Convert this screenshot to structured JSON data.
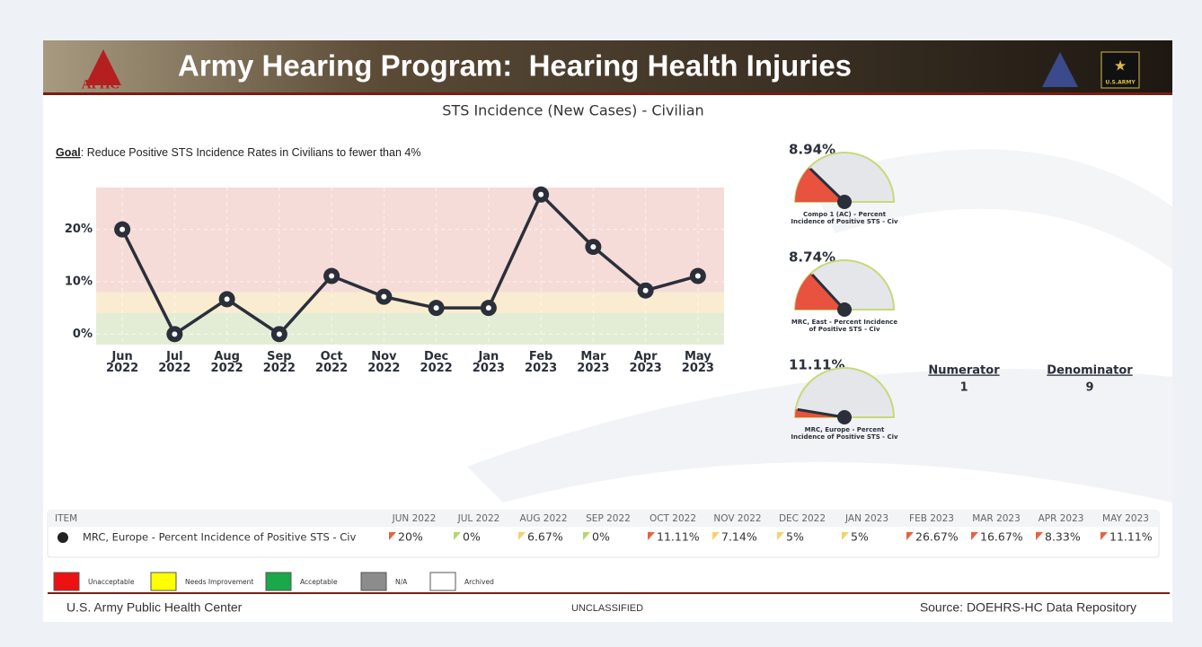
{
  "header": {
    "title": "Army Hearing Program:  Hearing Health Injuries",
    "logo": "APHC",
    "army_badge": "U.S.ARMY"
  },
  "chart_data": {
    "type": "line",
    "title": "STS Incidence (New Cases) - Civilian",
    "goal_label": "Goal",
    "goal_text": ": Reduce Positive STS Incidence Rates in Civilians to fewer than 4%",
    "categories": [
      "Jun 2022",
      "Jul 2022",
      "Aug 2022",
      "Sep 2022",
      "Oct 2022",
      "Nov 2022",
      "Dec 2022",
      "Jan 2023",
      "Feb 2023",
      "Mar 2023",
      "Apr 2023",
      "May 2023"
    ],
    "series": [
      {
        "name": "MRC, Europe",
        "color": "#2b2f3a",
        "values": [
          20,
          0,
          6.67,
          0,
          11.11,
          7.14,
          5,
          5,
          26.67,
          16.67,
          8.33,
          11.11
        ]
      }
    ],
    "ylim": [
      -2,
      28
    ],
    "yticks": [
      {
        "value": 0,
        "label": "0%"
      },
      {
        "value": 10,
        "label": "10%"
      },
      {
        "value": 20,
        "label": "20%"
      }
    ],
    "bands": [
      {
        "from": -2,
        "to": 4,
        "color": "#e3edd6"
      },
      {
        "from": 4,
        "to": 8,
        "color": "#f9ecd0"
      },
      {
        "from": 8,
        "to": 28,
        "color": "#f5dcd8"
      }
    ],
    "grid": true
  },
  "gauges": [
    {
      "value": 8.94,
      "value_label": "8.94%",
      "label": "Compo 1 (AC) - Percent Incidence of Positive STS - Civ"
    },
    {
      "value": 8.74,
      "value_label": "8.74%",
      "label": "MRC, East - Percent Incidence of Positive STS - Civ"
    },
    {
      "value": 11.11,
      "value_label": "11.11%",
      "label": "MRC, Europe - Percent Incidence of Positive STS - Civ"
    }
  ],
  "ratio": {
    "numerator_label": "Numerator",
    "numerator": "1",
    "denominator_label": "Denominator",
    "denominator": "9"
  },
  "table": {
    "header": [
      "ITEM",
      "JUN 2022",
      "JUL 2022",
      "AUG 2022",
      "SEP 2022",
      "OCT 2022",
      "NOV 2022",
      "DEC 2022",
      "JAN 2023",
      "FEB 2023",
      "MAR 2023",
      "APR 2023",
      "MAY 2023"
    ],
    "rows": [
      [
        "MRC, Europe - Percent Incidence of Positive STS - Civ",
        "20%",
        "0%",
        "6.67%",
        "0%",
        "11.11%",
        "7.14%",
        "5%",
        "5%",
        "26.67%",
        "16.67%",
        "8.33%",
        "11.11%"
      ]
    ],
    "flags": [
      [
        "#e8623f",
        "#b9d66a",
        "#f5d36a",
        "#b9d66a",
        "#e8623f",
        "#f5d36a",
        "#f5d36a",
        "#f5d36a",
        "#e8623f",
        "#e8623f",
        "#e8623f",
        "#e8623f"
      ]
    ]
  },
  "legend": [
    {
      "label": "Unacceptable",
      "color": "#ee1111"
    },
    {
      "label": "Needs Improvement",
      "color": "#ffff00"
    },
    {
      "label": "Acceptable",
      "color": "#1aa84a"
    },
    {
      "label": "N/A",
      "color": "#8c8c8c"
    },
    {
      "label": "Archived",
      "color": "#ffffff"
    }
  ],
  "footer": {
    "left": "U.S. Army Public Health Center",
    "center": "UNCLASSIFIED",
    "right": "Source:  DOEHRS-HC Data Repository"
  }
}
